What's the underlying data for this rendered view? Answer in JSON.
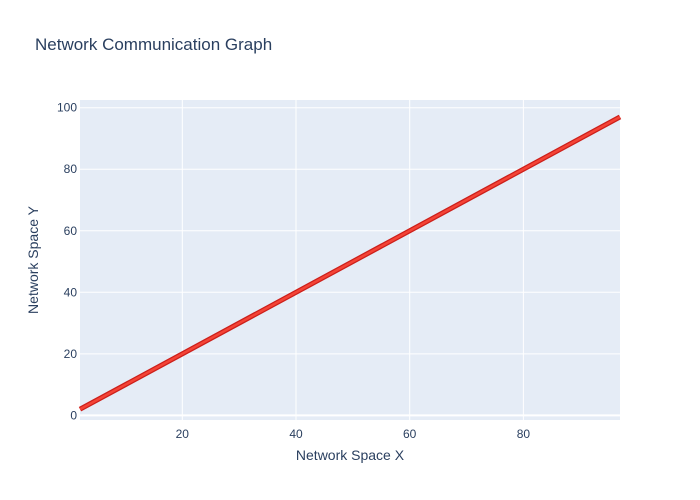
{
  "chart_data": {
    "type": "line",
    "title": "Network Communication Graph",
    "xlabel": "Network Space X",
    "ylabel": "Network Space Y",
    "xlim": [
      2,
      97
    ],
    "ylim": [
      -1.5,
      102.5
    ],
    "xticks": [
      20,
      40,
      60,
      80
    ],
    "yticks": [
      0,
      20,
      40,
      60,
      80,
      100
    ],
    "grid": true,
    "background_color": "#e5ecf6",
    "series": [
      {
        "color": "#cc1f1a",
        "x": [
          2,
          97
        ],
        "y": [
          2,
          97
        ]
      },
      {
        "color": "#f44336",
        "x": [
          2,
          97
        ],
        "y": [
          2,
          97
        ]
      }
    ]
  }
}
